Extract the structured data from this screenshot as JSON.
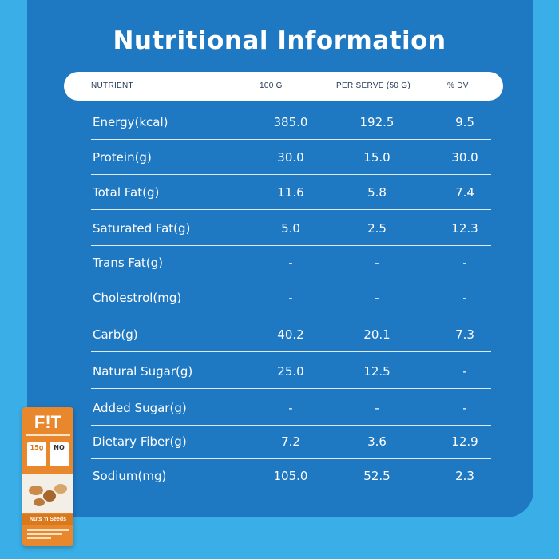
{
  "title": "Nutritional Information",
  "header": {
    "nutrient": "NUTRIENT",
    "per100": "100 G",
    "perServe": "PER SERVE (50 G)",
    "dv": "% DV"
  },
  "rows": [
    {
      "name": "Energy(kcal)",
      "per100": "385.0",
      "perServe": "192.5",
      "dv": "9.5"
    },
    {
      "name": "Protein(g)",
      "per100": "30.0",
      "perServe": "15.0",
      "dv": "30.0"
    },
    {
      "name": "Total Fat(g)",
      "per100": "11.6",
      "perServe": "5.8",
      "dv": "7.4"
    },
    {
      "name": "Saturated Fat(g)",
      "per100": "5.0",
      "perServe": "2.5",
      "dv": "12.3"
    },
    {
      "name": "Trans Fat(g)",
      "per100": "-",
      "perServe": "-",
      "dv": "-"
    },
    {
      "name": "Cholestrol(mg)",
      "per100": "-",
      "perServe": "-",
      "dv": "-"
    },
    {
      "name": "Carb(g)",
      "per100": "40.2",
      "perServe": "20.1",
      "dv": "7.3"
    },
    {
      "name": "Natural Sugar(g)",
      "per100": "25.0",
      "perServe": "12.5",
      "dv": "-"
    },
    {
      "name": "Added Sugar(g)",
      "per100": "-",
      "perServe": "-",
      "dv": "-"
    },
    {
      "name": "Dietary Fiber(g)",
      "per100": "7.2",
      "perServe": "3.6",
      "dv": "12.9"
    },
    {
      "name": "Sodium(mg)",
      "per100": "105.0",
      "perServe": "52.5",
      "dv": "2.3"
    }
  ],
  "product": {
    "brand": "F!T",
    "badge1": "15g",
    "badge2": "NO",
    "variant": "Nuts 'n Seeds"
  },
  "colors": {
    "background": "#3aaee6",
    "panel": "#1f78c2",
    "headerBar": "#ffffff",
    "text": "#ffffff",
    "productOrange": "#e8872b"
  }
}
